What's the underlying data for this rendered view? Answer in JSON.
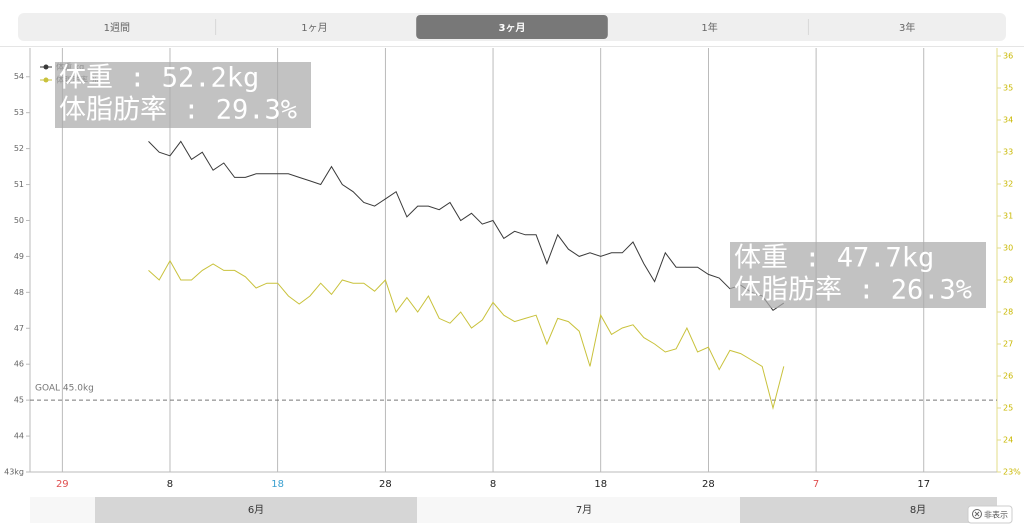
{
  "tabs": [
    "1週間",
    "1ヶ月",
    "3ヶ月",
    "1年",
    "3年"
  ],
  "selected_tab": 2,
  "months": [
    "6月",
    "7月",
    "8月"
  ],
  "hide_button": "非表示",
  "chart_data": {
    "type": "line",
    "x": [
      8,
      9,
      10,
      11,
      12,
      13,
      14,
      15,
      16,
      17,
      18,
      19,
      20,
      21,
      22,
      23,
      24,
      25,
      26,
      27,
      28,
      29,
      30,
      31,
      32,
      33,
      34,
      35,
      36,
      37,
      38,
      39,
      40,
      41,
      42,
      43,
      44,
      45,
      46,
      47,
      48,
      49,
      50,
      51,
      52,
      53,
      54,
      55,
      56,
      57,
      58,
      59,
      60,
      61,
      62,
      63,
      64,
      65,
      66,
      67
    ],
    "xlim": [
      -3,
      86.8
    ],
    "xticks": [
      {
        "value": 0,
        "label": "29",
        "color": "#e05050"
      },
      {
        "value": 10,
        "label": "8",
        "color": "#222"
      },
      {
        "value": 20,
        "label": "18",
        "color": "#3aa0d0"
      },
      {
        "value": 30,
        "label": "28",
        "color": "#222"
      },
      {
        "value": 40,
        "label": "8",
        "color": "#222"
      },
      {
        "value": 50,
        "label": "18",
        "color": "#222"
      },
      {
        "value": 60,
        "label": "28",
        "color": "#222"
      },
      {
        "value": 70,
        "label": "7",
        "color": "#e05050"
      },
      {
        "value": 80,
        "label": "17",
        "color": "#222"
      }
    ],
    "ylim": [
      43,
      54.8
    ],
    "yticks": [
      {
        "value": 43,
        "label": "43kg"
      },
      44,
      45,
      46,
      47,
      48,
      49,
      50,
      51,
      52,
      53,
      54
    ],
    "y2lim": [
      23,
      36.25
    ],
    "y2ticks": [
      {
        "value": 23,
        "label": "23%"
      },
      24,
      25,
      26,
      27,
      28,
      29,
      30,
      31,
      32,
      33,
      34,
      35,
      36
    ],
    "series": [
      {
        "name": "体重 kg",
        "color": "#3a3a3a",
        "values": [
          52.2,
          51.9,
          51.8,
          52.2,
          51.7,
          51.9,
          51.4,
          51.6,
          51.2,
          51.2,
          51.3,
          51.3,
          51.3,
          51.3,
          51.2,
          51.1,
          51.0,
          51.5,
          51.0,
          50.8,
          50.5,
          50.4,
          50.6,
          50.8,
          50.1,
          50.4,
          50.4,
          50.3,
          50.5,
          50.0,
          50.2,
          49.9,
          50.0,
          49.5,
          49.7,
          49.6,
          49.6,
          48.8,
          49.6,
          49.2,
          49.0,
          49.1,
          49.0,
          49.1,
          49.1,
          49.4,
          48.8,
          48.3,
          49.1,
          48.7,
          48.7,
          48.7,
          48.5,
          48.4,
          48.1,
          48.2,
          48.0,
          47.9,
          47.5,
          47.7
        ]
      },
      {
        "name": "体脂肪率 %",
        "color": "#c9c23c",
        "axis": "y2",
        "values": [
          29.3,
          29.0,
          29.6,
          29.0,
          29.0,
          29.3,
          29.5,
          29.3,
          29.3,
          29.1,
          28.75,
          28.9,
          28.9,
          28.5,
          28.25,
          28.5,
          28.9,
          28.55,
          29.0,
          28.9,
          28.9,
          28.65,
          29.0,
          28.0,
          28.45,
          28.0,
          28.5,
          27.8,
          27.65,
          28.0,
          27.5,
          27.75,
          28.3,
          27.9,
          27.7,
          27.8,
          27.9,
          27.0,
          27.8,
          27.7,
          27.4,
          26.3,
          27.9,
          27.3,
          27.5,
          27.6,
          27.2,
          27.0,
          26.75,
          26.85,
          27.5,
          26.75,
          26.9,
          26.2,
          26.8,
          26.7,
          26.5,
          26.3,
          25.0,
          26.3
        ]
      }
    ],
    "goal": {
      "value": 45,
      "label": "GOAL 45.0kg"
    },
    "annotations": [
      {
        "lines": [
          "体重 : 52.2kg",
          "体脂肪率 : 29.3%"
        ]
      },
      {
        "lines": [
          "体重 : 47.7kg",
          "体脂肪率 : 26.3%"
        ]
      }
    ],
    "grid": true
  }
}
